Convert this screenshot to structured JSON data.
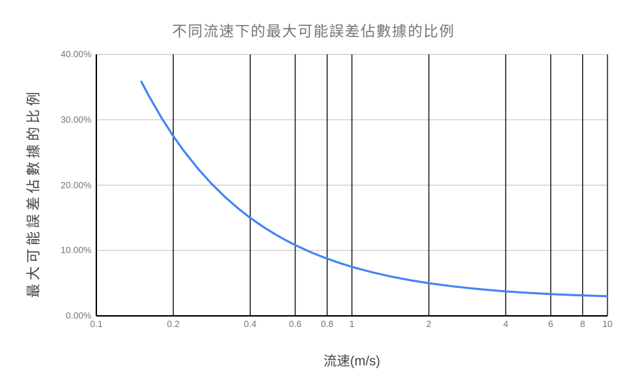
{
  "chart_data": {
    "type": "line",
    "title": "不同流速下的最大可能誤差佔數據的比例",
    "xlabel": "流速(m/s)",
    "ylabel": "最大可能誤差佔數據的比例",
    "x_scale": "log",
    "xlim": [
      0.1,
      10
    ],
    "ylim": [
      0,
      40
    ],
    "x_ticks": [
      0.1,
      0.2,
      0.4,
      0.6,
      0.8,
      1,
      2,
      4,
      6,
      8,
      10
    ],
    "x_tick_labels": [
      "0.1",
      "0.2",
      "0.4",
      "0.6",
      "0.8",
      "1",
      "2",
      "4",
      "6",
      "8",
      "10"
    ],
    "y_ticks": [
      0,
      10,
      20,
      30,
      40
    ],
    "y_tick_labels": [
      "0.00%",
      "10.00%",
      "20.00%",
      "30.00%",
      "40.00%"
    ],
    "grid": "on",
    "legend": "none",
    "series": [
      {
        "name": "最大可能誤差佔數據的比例",
        "color": "#4285f4",
        "x": [
          0.15,
          0.16,
          0.18,
          0.2,
          0.22,
          0.25,
          0.28,
          0.32,
          0.36,
          0.4,
          0.45,
          0.5,
          0.55,
          0.6,
          0.7,
          0.8,
          0.9,
          1,
          1.2,
          1.4,
          1.7,
          2,
          2.5,
          3,
          3.5,
          4,
          5,
          6,
          7,
          8,
          9,
          10
        ],
        "y": [
          35.83,
          33.75,
          30.28,
          27.5,
          25.23,
          22.5,
          20.36,
          18.13,
          16.39,
          15.0,
          13.61,
          12.5,
          11.59,
          10.83,
          9.64,
          8.75,
          8.06,
          7.5,
          6.67,
          6.07,
          5.44,
          5.0,
          4.5,
          4.17,
          3.93,
          3.75,
          3.5,
          3.33,
          3.21,
          3.13,
          3.06,
          3.0
        ]
      }
    ],
    "style": {
      "series_color": "#4285f4",
      "vertical_grid_color": "#000000",
      "horizontal_grid_color": "#cccccc",
      "axis_color": "#000000",
      "title_color": "#757575",
      "axis_title_color": "#424242",
      "tick_label_color": "#757575",
      "background_color": "#ffffff"
    }
  }
}
